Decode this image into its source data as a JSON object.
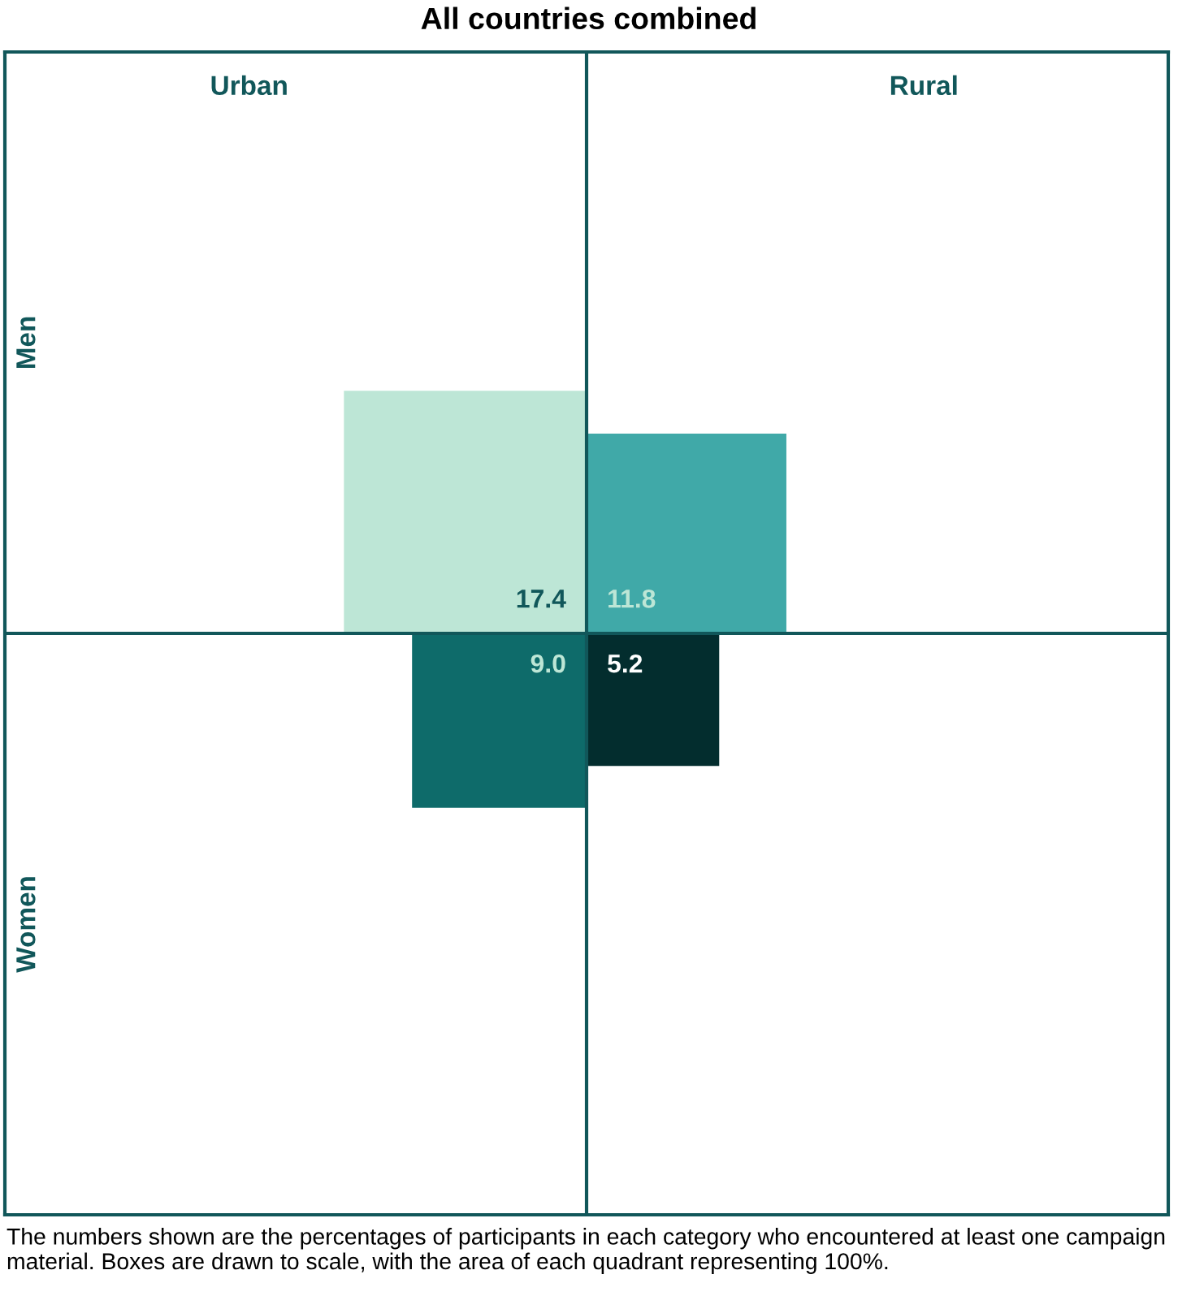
{
  "chart_data": {
    "type": "other",
    "title": "All countries combined",
    "categories": [
      "Urban",
      "Rural"
    ],
    "series": [
      {
        "colors": [
          "#bde6d6",
          "#40a9a8"
        ],
        "values": [
          17.4,
          11.8
        ],
        "value_labels": [
          "17.4",
          "11.8"
        ]
      },
      {
        "colors": [
          "#0e6b6a",
          "#032d2e"
        ],
        "values": [
          9.0,
          5.2
        ],
        "value_labels": [
          "9.0",
          "5.2"
        ]
      }
    ],
    "annotations": [
      "Men",
      "Women",
      "The numbers shown are the percentages of participants in each category who encountered at least one campaign material. Boxes are drawn to scale, with the area of each quadrant representing 100%."
    ]
  }
}
